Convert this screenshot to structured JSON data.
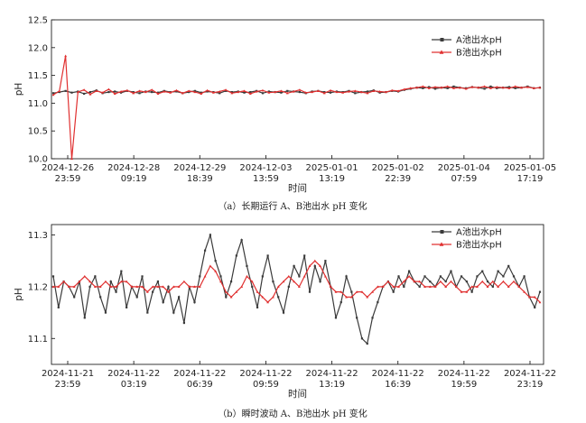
{
  "chart_data": [
    {
      "type": "line",
      "caption": "（a）长期运行 A、B池出水 pH 变化",
      "xlabel": "时间",
      "ylabel": "pH",
      "ylim": [
        10.0,
        12.5
      ],
      "yticks": [
        10.0,
        10.5,
        11.0,
        11.5,
        12.0,
        12.5
      ],
      "x_tick_labels": [
        [
          "2024-12-26",
          "23:59"
        ],
        [
          "2024-12-28",
          "09:19"
        ],
        [
          "2024-12-29",
          "18:39"
        ],
        [
          "2024-12-03",
          "13:59"
        ],
        [
          "2025-01-01",
          "13:19"
        ],
        [
          "2025-01-02",
          "22:39"
        ],
        [
          "2025-01-04",
          "07:59"
        ],
        [
          "2025-01-05",
          "17:19"
        ]
      ],
      "legend_position": "top-right",
      "series": [
        {
          "name": "A池出水pH",
          "color": "#3a3a3a",
          "marker": "square",
          "values": [
            11.18,
            11.2,
            11.22,
            11.19,
            11.21,
            11.17,
            11.2,
            11.23,
            11.18,
            11.2,
            11.21,
            11.19,
            11.22,
            11.2,
            11.18,
            11.21,
            11.2,
            11.19,
            11.22,
            11.2,
            11.21,
            11.18,
            11.2,
            11.22,
            11.19,
            11.21,
            11.2,
            11.18,
            11.22,
            11.2,
            11.21,
            11.19,
            11.2,
            11.22,
            11.18,
            11.21,
            11.2,
            11.19,
            11.22,
            11.21,
            11.2,
            11.18,
            11.21,
            11.22,
            11.2,
            11.19,
            11.21,
            11.2,
            11.22,
            11.18,
            11.2,
            11.21,
            11.23,
            11.19,
            11.2,
            11.22,
            11.21,
            11.24,
            11.26,
            11.28,
            11.27,
            11.29,
            11.26,
            11.28,
            11.27,
            11.3,
            11.28,
            11.27,
            11.29,
            11.28,
            11.26,
            11.3,
            11.27,
            11.28,
            11.29,
            11.27,
            11.28,
            11.3,
            11.27,
            11.28
          ]
        },
        {
          "name": "B池出水pH",
          "color": "#e03030",
          "marker": "triangle",
          "values": [
            11.15,
            11.22,
            11.85,
            10.0,
            11.2,
            11.24,
            11.16,
            11.22,
            11.19,
            11.25,
            11.17,
            11.21,
            11.23,
            11.18,
            11.22,
            11.2,
            11.24,
            11.17,
            11.21,
            11.19,
            11.23,
            11.18,
            11.22,
            11.2,
            11.17,
            11.23,
            11.19,
            11.21,
            11.24,
            11.18,
            11.2,
            11.22,
            11.17,
            11.21,
            11.23,
            11.19,
            11.2,
            11.22,
            11.18,
            11.21,
            11.24,
            11.19,
            11.2,
            11.22,
            11.18,
            11.23,
            11.2,
            11.19,
            11.21,
            11.22,
            11.2,
            11.18,
            11.22,
            11.21,
            11.2,
            11.23,
            11.22,
            11.25,
            11.27,
            11.28,
            11.3,
            11.27,
            11.29,
            11.28,
            11.3,
            11.27,
            11.28,
            11.26,
            11.29,
            11.28,
            11.3,
            11.27,
            11.29,
            11.28,
            11.27,
            11.3,
            11.28,
            11.29,
            11.27,
            11.28
          ]
        }
      ]
    },
    {
      "type": "line",
      "caption": "（b）瞬时波动 A、B池出水 pH 变化",
      "xlabel": "时间",
      "ylabel": "pH",
      "ylim": [
        11.05,
        11.32
      ],
      "yticks": [
        11.1,
        11.2,
        11.3
      ],
      "x_tick_labels": [
        [
          "2024-11-21",
          "23:59"
        ],
        [
          "2024-11-22",
          "03:19"
        ],
        [
          "2024-11-22",
          "06:39"
        ],
        [
          "2024-11-22",
          "09:59"
        ],
        [
          "2024-11-22",
          "13:19"
        ],
        [
          "2024-11-22",
          "16:39"
        ],
        [
          "2024-11-22",
          "19:59"
        ],
        [
          "2024-11-22",
          "23:19"
        ]
      ],
      "legend_position": "top-right",
      "series": [
        {
          "name": "A池出水pH",
          "color": "#3a3a3a",
          "marker": "square",
          "values": [
            11.22,
            11.16,
            11.21,
            11.2,
            11.18,
            11.21,
            11.14,
            11.2,
            11.22,
            11.18,
            11.15,
            11.21,
            11.19,
            11.23,
            11.16,
            11.2,
            11.18,
            11.22,
            11.15,
            11.19,
            11.21,
            11.17,
            11.2,
            11.15,
            11.18,
            11.13,
            11.2,
            11.17,
            11.22,
            11.27,
            11.3,
            11.25,
            11.22,
            11.18,
            11.21,
            11.26,
            11.29,
            11.24,
            11.2,
            11.16,
            11.22,
            11.26,
            11.21,
            11.18,
            11.15,
            11.2,
            11.24,
            11.22,
            11.26,
            11.19,
            11.24,
            11.21,
            11.25,
            11.2,
            11.14,
            11.17,
            11.22,
            11.19,
            11.14,
            11.1,
            11.09,
            11.14,
            11.17,
            11.2,
            11.21,
            11.19,
            11.22,
            11.2,
            11.23,
            11.21,
            11.2,
            11.22,
            11.21,
            11.2,
            11.22,
            11.21,
            11.23,
            11.2,
            11.22,
            11.21,
            11.19,
            11.22,
            11.23,
            11.21,
            11.2,
            11.23,
            11.22,
            11.24,
            11.22,
            11.2,
            11.22,
            11.18,
            11.16,
            11.19
          ]
        },
        {
          "name": "B池出水pH",
          "color": "#e03030",
          "marker": "triangle",
          "values": [
            11.2,
            11.2,
            11.21,
            11.2,
            11.2,
            11.21,
            11.22,
            11.21,
            11.2,
            11.2,
            11.21,
            11.2,
            11.2,
            11.21,
            11.21,
            11.2,
            11.2,
            11.2,
            11.19,
            11.2,
            11.2,
            11.2,
            11.19,
            11.2,
            11.2,
            11.21,
            11.2,
            11.2,
            11.2,
            11.22,
            11.24,
            11.23,
            11.21,
            11.19,
            11.18,
            11.19,
            11.2,
            11.22,
            11.21,
            11.19,
            11.18,
            11.17,
            11.18,
            11.2,
            11.21,
            11.22,
            11.21,
            11.2,
            11.22,
            11.24,
            11.25,
            11.24,
            11.22,
            11.2,
            11.19,
            11.19,
            11.18,
            11.18,
            11.19,
            11.19,
            11.18,
            11.19,
            11.2,
            11.2,
            11.21,
            11.2,
            11.2,
            11.21,
            11.22,
            11.21,
            11.21,
            11.2,
            11.2,
            11.2,
            11.21,
            11.2,
            11.21,
            11.2,
            11.19,
            11.19,
            11.2,
            11.2,
            11.21,
            11.2,
            11.21,
            11.2,
            11.21,
            11.2,
            11.21,
            11.2,
            11.19,
            11.18,
            11.18,
            11.17
          ]
        }
      ]
    }
  ]
}
